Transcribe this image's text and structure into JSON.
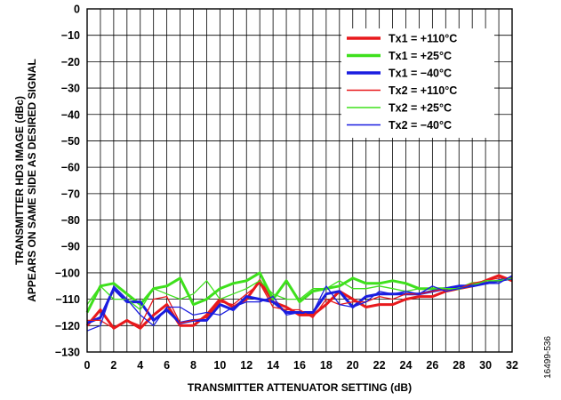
{
  "figure_id": "16499-536",
  "chart_data": {
    "type": "line",
    "xlabel": "TRANSMITTER ATTENUATOR SETTING (dB)",
    "ylabel_lines": [
      "TRANSMITTER HD3 IMAGE (dBc)",
      "APPEARS ON SAME SIDE AS DESIRED SIGNAL"
    ],
    "xlim": [
      0,
      32
    ],
    "ylim": [
      -130,
      0
    ],
    "x_ticks": [
      0,
      2,
      4,
      6,
      8,
      10,
      12,
      14,
      16,
      18,
      20,
      22,
      24,
      26,
      28,
      30,
      32
    ],
    "y_ticks": [
      0,
      -10,
      -20,
      -30,
      -40,
      -50,
      -60,
      -70,
      -80,
      -90,
      -100,
      -110,
      -120,
      -130
    ],
    "x_tick_labels": [
      "0",
      "2",
      "4",
      "6",
      "8",
      "10",
      "12",
      "14",
      "16",
      "18",
      "20",
      "22",
      "24",
      "26",
      "28",
      "30",
      "32"
    ],
    "y_tick_labels": [
      "0",
      "−10",
      "−20",
      "−30",
      "−40",
      "−50",
      "−60",
      "−70",
      "−80",
      "−90",
      "−100",
      "−110",
      "−120",
      "−130"
    ],
    "grid": true,
    "legend_position": "top-right",
    "x": [
      0,
      1,
      2,
      3,
      4,
      5,
      6,
      7,
      8,
      9,
      10,
      11,
      12,
      13,
      14,
      15,
      16,
      17,
      18,
      19,
      20,
      21,
      22,
      23,
      24,
      25,
      26,
      27,
      28,
      29,
      30,
      31,
      32
    ],
    "series": [
      {
        "name": "Tx1 = +110°C",
        "color": "#e8191c",
        "width": "thick",
        "values": [
          -120,
          -114,
          -121,
          -118,
          -121,
          -116,
          -112,
          -120,
          -120,
          -116,
          -110,
          -113,
          -110,
          -103,
          -111,
          -113,
          -116,
          -116,
          -112,
          -107,
          -110,
          -113,
          -112,
          -112,
          -110,
          -109,
          -109,
          -107,
          -106,
          -105,
          -103,
          -101,
          -103
        ]
      },
      {
        "name": "Tx1 = +25°C",
        "color": "#3ee01c",
        "width": "thick",
        "values": [
          -115,
          -105,
          -104,
          -108,
          -112,
          -106,
          -105,
          -102,
          -112,
          -110,
          -106,
          -104,
          -103,
          -100,
          -110,
          -103,
          -111,
          -107,
          -106,
          -105,
          -102,
          -104,
          -104,
          -103,
          -104,
          -106,
          -106,
          -106,
          -106,
          -104,
          -104,
          -103,
          -102
        ]
      },
      {
        "name": "Tx1 = −40°C",
        "color": "#1a1de0",
        "width": "thick",
        "values": [
          -119,
          -117,
          -106,
          -111,
          -111,
          -118,
          -114,
          -119,
          -118,
          -118,
          -112,
          -114,
          -109,
          -110,
          -111,
          -115,
          -115,
          -115,
          -108,
          -107,
          -113,
          -109,
          -108,
          -108,
          -108,
          -108,
          -107,
          -106,
          -105,
          -105,
          -104,
          -103,
          -102
        ]
      },
      {
        "name": "Tx2 = +110°C",
        "color": "#e8191c",
        "width": "thin",
        "values": [
          -118,
          -118,
          -121,
          -118,
          -120,
          -110,
          -109,
          -119,
          -118,
          -117,
          -111,
          -112,
          -108,
          -104,
          -113,
          -114,
          -114,
          -117,
          -110,
          -112,
          -111,
          -111,
          -109,
          -110,
          -108,
          -108,
          -107,
          -106,
          -106,
          -104,
          -103,
          -102,
          -102
        ]
      },
      {
        "name": "Tx2 = +25°C",
        "color": "#3ee01c",
        "width": "thin",
        "values": [
          -112,
          -105,
          -110,
          -110,
          -114,
          -106,
          -108,
          -110,
          -108,
          -103,
          -110,
          -108,
          -106,
          -103,
          -108,
          -110,
          -110,
          -106,
          -106,
          -103,
          -106,
          -106,
          -105,
          -106,
          -107,
          -106,
          -106,
          -106,
          -106,
          -105,
          -103,
          -103,
          -102
        ]
      },
      {
        "name": "Tx2 = −40°C",
        "color": "#1a1de0",
        "width": "thin",
        "values": [
          -122,
          -120,
          -105,
          -110,
          -116,
          -120,
          -113,
          -113,
          -116,
          -115,
          -116,
          -113,
          -111,
          -111,
          -109,
          -116,
          -115,
          -115,
          -105,
          -112,
          -113,
          -111,
          -107,
          -108,
          -107,
          -108,
          -105,
          -107,
          -106,
          -105,
          -104,
          -104,
          -101
        ]
      }
    ]
  }
}
